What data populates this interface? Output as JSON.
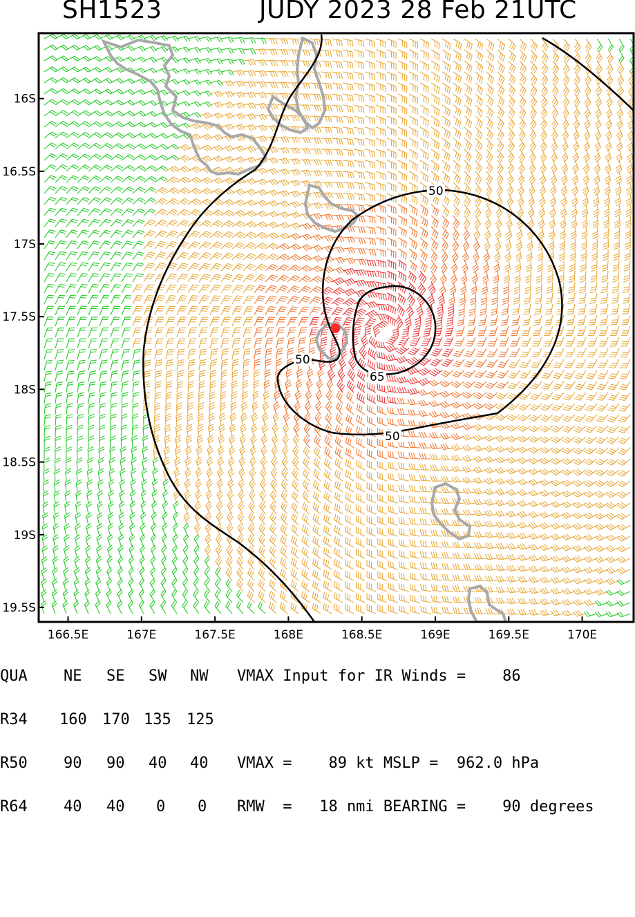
{
  "header": {
    "storm_id": "SH1523",
    "storm_info": "JUDY 2023 28 Feb 21UTC"
  },
  "map": {
    "lon_range": [
      166.3,
      170.35
    ],
    "lat_range": [
      -19.6,
      -15.55
    ],
    "lon_ticks": [
      "166.5E",
      "167E",
      "167.5E",
      "168E",
      "168.5E",
      "169E",
      "169.5E",
      "170E"
    ],
    "lat_ticks": [
      "16S",
      "16.5S",
      "17S",
      "17.5S",
      "18S",
      "18.5S",
      "19S",
      "19.5S"
    ],
    "contour_labels": [
      "50",
      "50",
      "65",
      "50"
    ],
    "storm_center": {
      "lon": 168.32,
      "lat": -17.58
    },
    "colors": {
      "wind_low": "#22cc22",
      "wind_34": "#e8a838",
      "wind_50": "#f07830",
      "wind_64": "#e83a3a",
      "land": "#a8a8a8",
      "contour": "#000000",
      "center": "#ff2a2a"
    }
  },
  "table": {
    "header": [
      "QUA",
      "NE",
      "SE",
      "SW",
      "NW"
    ],
    "rows": [
      [
        "R34",
        "160",
        "170",
        "135",
        "125"
      ],
      [
        "R50",
        "90",
        "90",
        "40",
        "40"
      ],
      [
        "R64",
        "40",
        "40",
        "0",
        "0"
      ]
    ],
    "line1": "VMAX Input for IR Winds =    86",
    "line3": "VMAX =    89 kt MSLP =  962.0 hPa",
    "line4": "RMW  =   18 nmi BEARING =    90 degrees"
  }
}
